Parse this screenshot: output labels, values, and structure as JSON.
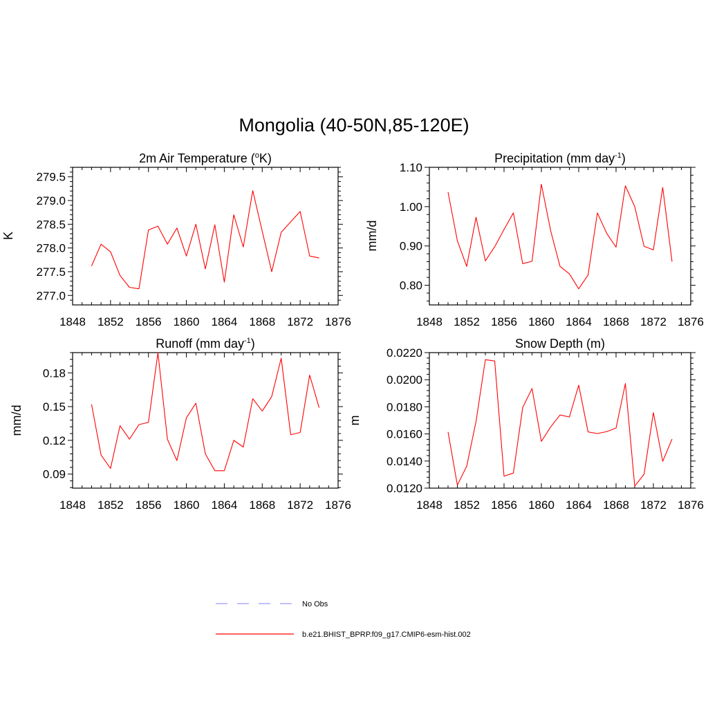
{
  "figure": {
    "title": "Mongolia (40-50N,85-120E)"
  },
  "legend": [
    {
      "label": "No Obs",
      "color": "#9999ff",
      "dash": "dashed"
    },
    {
      "label": "b.e21.BHIST_BPRP.f09_g17.CMIP6-esm-hist.002",
      "color": "#ff0000",
      "dash": "solid"
    }
  ],
  "chart_data": [
    {
      "type": "line",
      "title": "2m Air Temperature (",
      "title_sup": "o",
      "title_tail": "K)",
      "ylabel": "K",
      "xlim": [
        1848,
        1876
      ],
      "ylim": [
        276.8,
        279.7
      ],
      "xticks": [
        1848,
        1852,
        1856,
        1860,
        1864,
        1868,
        1872,
        1876
      ],
      "yticks": [
        277.0,
        277.5,
        278.0,
        278.5,
        279.0,
        279.5
      ],
      "ytick_labels": [
        "277.0",
        "277.5",
        "278.0",
        "278.5",
        "279.0",
        "279.5"
      ],
      "series": [
        {
          "color": "#ff0000",
          "x": [
            1850,
            1851,
            1852,
            1853,
            1854,
            1855,
            1856,
            1857,
            1858,
            1859,
            1860,
            1861,
            1862,
            1863,
            1864,
            1865,
            1866,
            1867,
            1868,
            1869,
            1870,
            1871,
            1872,
            1873,
            1874
          ],
          "values": [
            277.62,
            278.08,
            277.92,
            277.42,
            277.17,
            277.14,
            278.38,
            278.46,
            278.08,
            278.42,
            277.83,
            278.5,
            277.56,
            278.49,
            277.28,
            278.7,
            278.02,
            279.21,
            278.35,
            277.5,
            278.33,
            278.55,
            278.77,
            277.83,
            277.79
          ]
        }
      ]
    },
    {
      "type": "line",
      "title": "Precipitation (mm day",
      "title_sup": "-1",
      "title_tail": ")",
      "ylabel": "mm/d",
      "xlim": [
        1848,
        1876
      ],
      "ylim": [
        0.75,
        1.1
      ],
      "xticks": [
        1848,
        1852,
        1856,
        1860,
        1864,
        1868,
        1872,
        1876
      ],
      "yticks": [
        0.8,
        0.9,
        1.0,
        1.1
      ],
      "ytick_labels": [
        "0.80",
        "0.90",
        "1.00",
        "1.10"
      ],
      "series": [
        {
          "color": "#ff0000",
          "x": [
            1850,
            1851,
            1852,
            1853,
            1854,
            1855,
            1856,
            1857,
            1858,
            1859,
            1860,
            1861,
            1862,
            1863,
            1864,
            1865,
            1866,
            1867,
            1868,
            1869,
            1870,
            1871,
            1872,
            1873,
            1874
          ],
          "values": [
            1.037,
            0.913,
            0.848,
            0.973,
            0.862,
            0.898,
            0.942,
            0.984,
            0.855,
            0.861,
            1.057,
            0.938,
            0.848,
            0.829,
            0.791,
            0.826,
            0.984,
            0.932,
            0.897,
            1.053,
            1.0,
            0.899,
            0.89,
            1.049,
            0.86
          ]
        }
      ]
    },
    {
      "type": "line",
      "title": "Runoff (mm day",
      "title_sup": "-1",
      "title_tail": ")",
      "ylabel": "mm/d",
      "xlim": [
        1848,
        1876
      ],
      "ylim": [
        0.0775,
        0.198
      ],
      "xticks": [
        1848,
        1852,
        1856,
        1860,
        1864,
        1868,
        1872,
        1876
      ],
      "yticks": [
        0.09,
        0.12,
        0.15,
        0.18
      ],
      "ytick_labels": [
        "0.09",
        "0.12",
        "0.15",
        "0.18"
      ],
      "series": [
        {
          "color": "#ff0000",
          "x": [
            1850,
            1851,
            1852,
            1853,
            1854,
            1855,
            1856,
            1857,
            1858,
            1859,
            1860,
            1861,
            1862,
            1863,
            1864,
            1865,
            1866,
            1867,
            1868,
            1869,
            1870,
            1871,
            1872,
            1873,
            1874
          ],
          "values": [
            0.152,
            0.107,
            0.095,
            0.133,
            0.121,
            0.134,
            0.136,
            0.198,
            0.121,
            0.102,
            0.14,
            0.153,
            0.108,
            0.093,
            0.093,
            0.12,
            0.114,
            0.157,
            0.146,
            0.159,
            0.193,
            0.125,
            0.127,
            0.178,
            0.149
          ]
        }
      ]
    },
    {
      "type": "line",
      "title": "Snow Depth (m)",
      "title_sup": "",
      "title_tail": "",
      "ylabel": "m",
      "xlim": [
        1848,
        1876
      ],
      "ylim": [
        0.012,
        0.022
      ],
      "xticks": [
        1848,
        1852,
        1856,
        1860,
        1864,
        1868,
        1872,
        1876
      ],
      "yticks": [
        0.012,
        0.014,
        0.016,
        0.018,
        0.02,
        0.022
      ],
      "ytick_labels": [
        "0.0120",
        "0.0140",
        "0.0160",
        "0.0180",
        "0.0200",
        "0.0220"
      ],
      "series": [
        {
          "color": "#ff0000",
          "x": [
            1850,
            1851,
            1852,
            1853,
            1854,
            1855,
            1856,
            1857,
            1858,
            1859,
            1860,
            1861,
            1862,
            1863,
            1864,
            1865,
            1866,
            1867,
            1868,
            1869,
            1870,
            1871,
            1872,
            1873,
            1874
          ],
          "values": [
            0.01615,
            0.01222,
            0.01362,
            0.01692,
            0.02148,
            0.02138,
            0.01288,
            0.01312,
            0.01795,
            0.01935,
            0.01545,
            0.01652,
            0.0174,
            0.01725,
            0.0196,
            0.01615,
            0.01603,
            0.01617,
            0.01643,
            0.01972,
            0.01215,
            0.01302,
            0.01757,
            0.01398,
            0.01562
          ]
        }
      ]
    }
  ]
}
